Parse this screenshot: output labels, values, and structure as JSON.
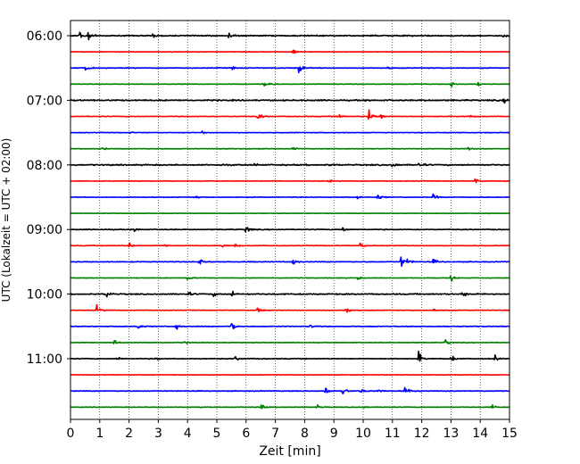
{
  "chart_data": {
    "type": "line",
    "subtype": "helicorder",
    "title": "",
    "xlabel": "Zeit  [min]",
    "ylabel": "UTC (Lokalzeit = UTC + 02:00)",
    "xlim": [
      0,
      15
    ],
    "x_ticks": [
      0,
      1,
      2,
      3,
      4,
      5,
      6,
      7,
      8,
      9,
      10,
      11,
      12,
      13,
      14,
      15
    ],
    "x_tick_labels": [
      "0",
      "1",
      "2",
      "3",
      "4",
      "5",
      "6",
      "7",
      "8",
      "9",
      "10",
      "11",
      "12",
      "13",
      "14",
      "15"
    ],
    "grid": "vertical-dotted",
    "trace_interval_minutes": 15,
    "row_start_times": [
      "06:00",
      "06:15",
      "06:30",
      "06:45",
      "07:00",
      "07:15",
      "07:30",
      "07:45",
      "08:00",
      "08:15",
      "08:30",
      "08:45",
      "09:00",
      "09:15",
      "09:30",
      "09:45",
      "10:00",
      "10:15",
      "10:30",
      "10:45",
      "11:00",
      "11:15",
      "11:30",
      "11:45"
    ],
    "y_tick_labels": [
      "06:00",
      "07:00",
      "08:00",
      "09:00",
      "10:00",
      "11:00"
    ],
    "y_tick_rows": [
      0,
      4,
      8,
      12,
      16,
      20
    ],
    "color_cycle": [
      "#000000",
      "#ff0000",
      "#0000ff",
      "#008000"
    ],
    "noise_levels": [
      0.1,
      0.05,
      0.07,
      0.05,
      0.11,
      0.06,
      0.05,
      0.05,
      0.11,
      0.05,
      0.06,
      0.04,
      0.07,
      0.05,
      0.07,
      0.05,
      0.1,
      0.05,
      0.07,
      0.05,
      0.07,
      0.04,
      0.07,
      0.06
    ],
    "events": [
      [
        [
          0.3,
          0.9
        ],
        [
          0.6,
          0.7
        ],
        [
          2.8,
          0.4
        ],
        [
          5.4,
          0.6
        ],
        [
          10.3,
          0.4
        ],
        [
          11.5,
          0.3
        ],
        [
          14.8,
          0.4
        ]
      ],
      [
        [
          7.6,
          0.6
        ]
      ],
      [
        [
          0.5,
          0.7
        ],
        [
          5.5,
          0.3
        ],
        [
          7.8,
          1.0
        ],
        [
          10.8,
          0.2
        ]
      ],
      [
        [
          6.6,
          0.5
        ],
        [
          6.8,
          0.4
        ],
        [
          13.0,
          0.5
        ],
        [
          13.9,
          0.6
        ]
      ],
      [
        [
          14.8,
          0.4
        ]
      ],
      [
        [
          6.4,
          0.9
        ],
        [
          9.2,
          0.5
        ],
        [
          10.2,
          1.6
        ],
        [
          10.6,
          0.5
        ],
        [
          13.6,
          0.3
        ]
      ],
      [
        [
          2.0,
          0.2
        ],
        [
          4.5,
          0.2
        ]
      ],
      [
        [
          1.1,
          0.3
        ],
        [
          7.6,
          0.5
        ],
        [
          13.6,
          0.3
        ]
      ],
      [
        [
          5.1,
          0.3
        ],
        [
          6.3,
          0.3
        ],
        [
          8.8,
          0.3
        ],
        [
          11.0,
          0.7
        ],
        [
          11.9,
          0.8
        ]
      ],
      [
        [
          8.8,
          0.3
        ],
        [
          13.8,
          0.7
        ]
      ],
      [
        [
          4.3,
          0.2
        ],
        [
          9.8,
          0.4
        ],
        [
          10.5,
          0.6
        ],
        [
          12.4,
          0.7
        ]
      ],
      [],
      [
        [
          2.2,
          0.4
        ],
        [
          6.0,
          0.9
        ],
        [
          9.3,
          0.5
        ]
      ],
      [
        [
          2.0,
          0.6
        ],
        [
          3.2,
          0.3
        ],
        [
          5.2,
          0.4
        ],
        [
          5.6,
          0.4
        ],
        [
          9.9,
          0.6
        ]
      ],
      [
        [
          4.4,
          0.8
        ],
        [
          7.6,
          0.8
        ],
        [
          11.3,
          1.2
        ],
        [
          11.5,
          0.6
        ],
        [
          12.4,
          0.5
        ]
      ],
      [
        [
          4.0,
          0.7
        ],
        [
          9.8,
          0.4
        ],
        [
          13.0,
          0.8
        ]
      ],
      [
        [
          1.2,
          1.0
        ],
        [
          4.0,
          0.5
        ],
        [
          4.9,
          0.4
        ],
        [
          5.5,
          0.7
        ],
        [
          13.4,
          0.6
        ]
      ],
      [
        [
          0.9,
          0.8
        ],
        [
          6.4,
          0.7
        ],
        [
          9.4,
          0.7
        ],
        [
          12.4,
          0.3
        ]
      ],
      [
        [
          2.3,
          0.6
        ],
        [
          3.6,
          0.8
        ],
        [
          5.5,
          1.1
        ],
        [
          8.2,
          0.4
        ]
      ],
      [
        [
          1.5,
          0.5
        ],
        [
          3.9,
          0.3
        ],
        [
          12.8,
          0.8
        ]
      ],
      [
        [
          1.6,
          0.4
        ],
        [
          2.9,
          0.3
        ],
        [
          5.6,
          0.5
        ],
        [
          11.9,
          1.2
        ],
        [
          13.0,
          0.9
        ],
        [
          14.5,
          0.6
        ]
      ],
      [],
      [
        [
          8.7,
          0.9
        ],
        [
          9.3,
          0.8
        ],
        [
          9.9,
          0.5
        ],
        [
          10.5,
          0.4
        ],
        [
          11.4,
          1.1
        ],
        [
          11.6,
          0.5
        ]
      ],
      [
        [
          6.5,
          0.6
        ],
        [
          8.4,
          0.6
        ],
        [
          10.0,
          0.3
        ],
        [
          14.4,
          0.6
        ]
      ]
    ]
  }
}
